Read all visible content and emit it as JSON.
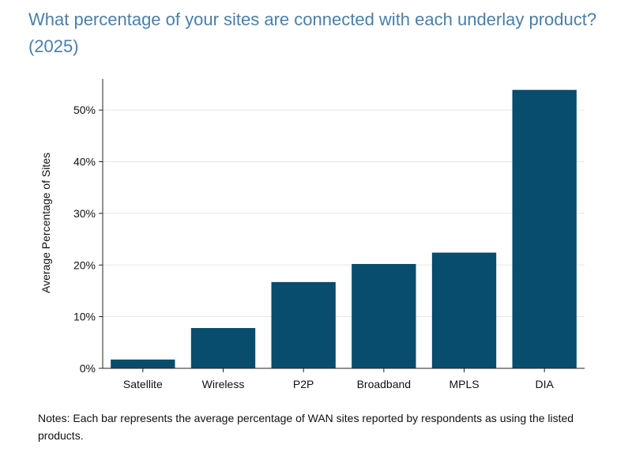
{
  "chart_data": {
    "type": "bar",
    "title": "What percentage of your sites are connected with each underlay product? (2025)",
    "xlabel": "",
    "ylabel": "Average Percentage of Sites",
    "categories": [
      "Satellite",
      "Wireless",
      "P2P",
      "Broadband",
      "MPLS",
      "DIA"
    ],
    "values": [
      1.7,
      7.8,
      16.7,
      20.2,
      22.4,
      53.9
    ],
    "ylim": [
      0,
      56
    ],
    "yticks": [
      0,
      10,
      20,
      30,
      40,
      50
    ],
    "ytick_labels": [
      "0%",
      "10%",
      "20%",
      "30%",
      "40%",
      "50%"
    ],
    "grid": true,
    "bar_color": "#084c6e",
    "grid_color": "#e6e6e6",
    "axis_color": "#222222"
  },
  "notes": "Notes: Each bar represents the average percentage of WAN sites reported by respondents as using the listed products."
}
